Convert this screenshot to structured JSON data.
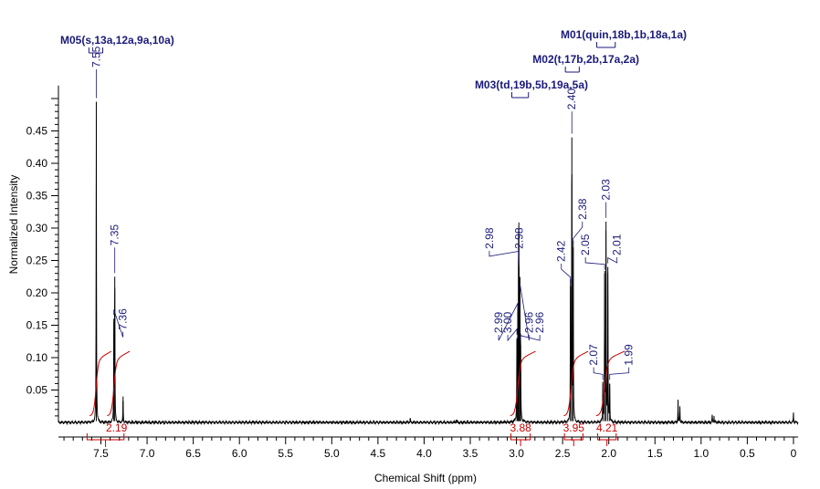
{
  "chart_data": {
    "type": "line",
    "title": "",
    "xlabel": "Chemical Shift (ppm)",
    "ylabel": "Normalized Intensity",
    "xlim": [
      7.96,
      -0.05
    ],
    "ylim": [
      0.0,
      0.52
    ],
    "x_ticks": [
      {
        "value": 7.5,
        "label": "7.5"
      },
      {
        "value": 7.0,
        "label": "7.0"
      },
      {
        "value": 6.5,
        "label": "6.5"
      },
      {
        "value": 6.0,
        "label": "6.0"
      },
      {
        "value": 5.5,
        "label": "5.5"
      },
      {
        "value": 5.0,
        "label": "5.0"
      },
      {
        "value": 4.5,
        "label": "4.5"
      },
      {
        "value": 4.0,
        "label": "4.0"
      },
      {
        "value": 3.5,
        "label": "3.5"
      },
      {
        "value": 3.0,
        "label": "3.0"
      },
      {
        "value": 2.5,
        "label": "2.5"
      },
      {
        "value": 2.0,
        "label": "2.0"
      },
      {
        "value": 1.5,
        "label": "1.5"
      },
      {
        "value": 1.0,
        "label": "1.0"
      },
      {
        "value": 0.5,
        "label": "0.5"
      },
      {
        "value": 0.0,
        "label": "0"
      }
    ],
    "y_ticks": [
      {
        "value": 0.05,
        "label": "0.05"
      },
      {
        "value": 0.1,
        "label": "0.10"
      },
      {
        "value": 0.15,
        "label": "0.15"
      },
      {
        "value": 0.2,
        "label": "0.20"
      },
      {
        "value": 0.25,
        "label": "0.25"
      },
      {
        "value": 0.3,
        "label": "0.30"
      },
      {
        "value": 0.35,
        "label": "0.35"
      },
      {
        "value": 0.4,
        "label": "0.40"
      },
      {
        "value": 0.45,
        "label": "0.45"
      }
    ],
    "peaks": [
      {
        "label": "7.55",
        "shift": 7.55,
        "height": 0.495,
        "leader": "v",
        "label_y": 0.545
      },
      {
        "label": "7.36",
        "shift": 7.36,
        "height": 0.16,
        "leader": "right",
        "label_y": 0.14
      },
      {
        "label": "7.35",
        "shift": 7.35,
        "height": 0.225,
        "leader": "v",
        "label_y": 0.27
      },
      {
        "label": "3.00",
        "shift": 2.995,
        "height": 0.13,
        "leader": "left",
        "label_y": 0.135
      },
      {
        "label": "2.99",
        "shift": 2.985,
        "height": 0.17,
        "leader": "left",
        "label_y": 0.135
      },
      {
        "label": "2.98",
        "shift": 2.977,
        "height": 0.25,
        "leader": "left",
        "label_y": 0.265
      },
      {
        "label": "2.98",
        "shift": 2.973,
        "height": 0.24,
        "leader": "v",
        "label_y": 0.265
      },
      {
        "label": "2.96",
        "shift": 2.962,
        "height": 0.2,
        "leader": "right",
        "label_y": 0.135
      },
      {
        "label": "2.96",
        "shift": 2.955,
        "height": 0.12,
        "leader": "right",
        "label_y": 0.135
      },
      {
        "label": "2.42",
        "shift": 2.415,
        "height": 0.21,
        "leader": "left",
        "label_y": 0.245
      },
      {
        "label": "2.40",
        "shift": 2.4,
        "height": 0.44,
        "leader": "v",
        "label_y": 0.48
      },
      {
        "label": "2.38",
        "shift": 2.385,
        "height": 0.27,
        "leader": "right",
        "label_y": 0.31
      },
      {
        "label": "2.07",
        "shift": 2.065,
        "height": 0.06,
        "leader": "left",
        "label_y": 0.085
      },
      {
        "label": "2.05",
        "shift": 2.045,
        "height": 0.23,
        "leader": "left",
        "label_y": 0.255
      },
      {
        "label": "2.03",
        "shift": 2.03,
        "height": 0.31,
        "leader": "v",
        "label_y": 0.34
      },
      {
        "label": "2.01",
        "shift": 2.01,
        "height": 0.24,
        "leader": "right",
        "label_y": 0.255
      },
      {
        "label": "1.99",
        "shift": 1.99,
        "height": 0.06,
        "leader": "right",
        "label_y": 0.085
      }
    ],
    "small_peaks": [
      {
        "shift": 7.26,
        "height": 0.04
      },
      {
        "shift": 1.25,
        "height": 0.035
      },
      {
        "shift": 1.23,
        "height": 0.025
      },
      {
        "shift": 0.88,
        "height": 0.012
      },
      {
        "shift": 0.86,
        "height": 0.01
      },
      {
        "shift": 0.0,
        "height": 0.015
      },
      {
        "shift": 4.15,
        "height": 0.006
      },
      {
        "shift": 3.65,
        "height": 0.004
      }
    ],
    "integrals": [
      {
        "label": "2.19",
        "from": 7.65,
        "to": 7.25,
        "split": 7.45
      },
      {
        "label": "3.88",
        "from": 3.06,
        "to": 2.85
      },
      {
        "label": "3.95",
        "from": 2.48,
        "to": 2.28
      },
      {
        "label": "4.21",
        "from": 2.12,
        "to": 1.92
      }
    ],
    "multiplets": [
      {
        "label": "M05(s,13a,12a,9a,10a)",
        "from": 7.63,
        "to": 7.48
      },
      {
        "label": "M01(quin,18b,1b,18a,1a)",
        "from": 2.13,
        "to": 1.93
      },
      {
        "label": "M02(t,17b,2b,17a,2a)",
        "from": 2.47,
        "to": 2.32
      },
      {
        "label": "M03(td,19b,5b,19a,5a)",
        "from": 3.05,
        "to": 2.87
      }
    ],
    "colors": {
      "spectrum": "#000000",
      "peak_labels": "#1a1a7a",
      "integrals": "#cc0000",
      "axis": "#000000"
    }
  }
}
